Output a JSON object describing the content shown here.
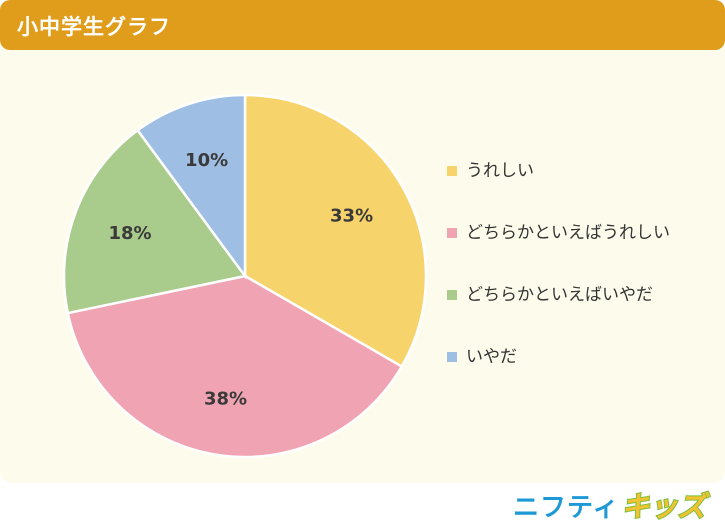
{
  "header": {
    "title": "小中学生グラフ"
  },
  "chart_data": {
    "type": "pie",
    "title": "",
    "categories": [
      "うれしい",
      "どちらかといえばうれしい",
      "どちらかといえばいやだ",
      "いやだ"
    ],
    "values": [
      33,
      38,
      18,
      10
    ],
    "value_labels": [
      "33%",
      "38%",
      "18%",
      "10%"
    ],
    "colors": [
      "#f7d36b",
      "#f0a3b3",
      "#a9cc8c",
      "#9ebee3"
    ],
    "start": "12 o'clock",
    "direction": "clockwise",
    "legend_position": "right"
  },
  "logo": {
    "part1": "ニフティ",
    "part2": "キッズ"
  }
}
